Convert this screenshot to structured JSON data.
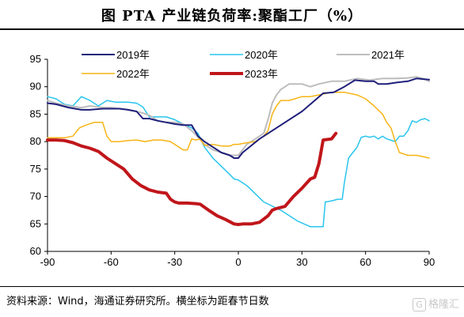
{
  "title": "图  PTA 产业链负荷率:聚酯工厂（%）",
  "source": "资料来源：Wind，海通证券研究所。横坐标为距春节日数",
  "watermark": "格隆汇",
  "chart_data": {
    "type": "line",
    "title": "PTA 产业链负荷率:聚酯工厂（%）",
    "xlabel": "",
    "ylabel": "",
    "xlim": [
      -90,
      90
    ],
    "ylim": [
      60,
      95
    ],
    "xticks": [
      -90,
      -60,
      -30,
      0,
      30,
      60,
      90
    ],
    "yticks": [
      60,
      65,
      70,
      75,
      80,
      85,
      90,
      95
    ],
    "grid": false,
    "legend_position": "top",
    "series": [
      {
        "name": "2019年",
        "color": "#1f1f7a",
        "width": 2,
        "points": [
          [
            -90,
            87
          ],
          [
            -86,
            86.8
          ],
          [
            -80,
            86.2
          ],
          [
            -74,
            85.8
          ],
          [
            -70,
            85.8
          ],
          [
            -64,
            86
          ],
          [
            -60,
            86
          ],
          [
            -56,
            86
          ],
          [
            -52,
            85.8
          ],
          [
            -48,
            85.5
          ],
          [
            -45,
            84.2
          ],
          [
            -42,
            84.2
          ],
          [
            -38,
            83.8
          ],
          [
            -34,
            83.5
          ],
          [
            -30,
            83.2
          ],
          [
            -26,
            83
          ],
          [
            -22,
            83
          ],
          [
            -19,
            81
          ],
          [
            -16,
            80
          ],
          [
            -12,
            79
          ],
          [
            -8,
            78
          ],
          [
            -4,
            77.5
          ],
          [
            -2,
            77
          ],
          [
            0,
            77
          ],
          [
            2,
            78
          ],
          [
            10,
            80.5
          ],
          [
            20,
            83
          ],
          [
            30,
            85.5
          ],
          [
            40,
            88.8
          ],
          [
            45,
            89
          ],
          [
            50,
            90
          ],
          [
            55,
            91.2
          ],
          [
            60,
            91
          ],
          [
            64,
            91
          ],
          [
            66,
            90.5
          ],
          [
            70,
            90.5
          ],
          [
            75,
            90.8
          ],
          [
            80,
            91
          ],
          [
            84,
            91.5
          ],
          [
            90,
            91.3
          ]
        ]
      },
      {
        "name": "2020年",
        "color": "#29c5ee",
        "width": 1.5,
        "points": [
          [
            -90,
            88.2
          ],
          [
            -86,
            87.8
          ],
          [
            -82,
            86.8
          ],
          [
            -78,
            86.5
          ],
          [
            -74,
            88.2
          ],
          [
            -70,
            87.5
          ],
          [
            -66,
            86.5
          ],
          [
            -62,
            87.5
          ],
          [
            -58,
            87.2
          ],
          [
            -52,
            87.2
          ],
          [
            -48,
            87
          ],
          [
            -45,
            86.3
          ],
          [
            -42,
            84.5
          ],
          [
            -38,
            84.5
          ],
          [
            -34,
            84.5
          ],
          [
            -30,
            84
          ],
          [
            -26,
            83.2
          ],
          [
            -22,
            82.5
          ],
          [
            -19,
            81.5
          ],
          [
            -16,
            79
          ],
          [
            -12,
            77
          ],
          [
            -8,
            75.5
          ],
          [
            -4,
            74
          ],
          [
            -2,
            73.2
          ],
          [
            0,
            73
          ],
          [
            4,
            72
          ],
          [
            8,
            70.5
          ],
          [
            12,
            69
          ],
          [
            20,
            67.5
          ],
          [
            28,
            65.5
          ],
          [
            34,
            64.5
          ],
          [
            40,
            64.5
          ],
          [
            41,
            69
          ],
          [
            44,
            69.2
          ],
          [
            47,
            69.5
          ],
          [
            49,
            69.5
          ],
          [
            50,
            72.5
          ],
          [
            52,
            77
          ],
          [
            54,
            78
          ],
          [
            56,
            79
          ],
          [
            58,
            80.8
          ],
          [
            60,
            81
          ],
          [
            62,
            80.8
          ],
          [
            64,
            81
          ],
          [
            66,
            80.5
          ],
          [
            68,
            81
          ],
          [
            70,
            80.5
          ],
          [
            74,
            80
          ],
          [
            76,
            81
          ],
          [
            78,
            81
          ],
          [
            80,
            82
          ],
          [
            82,
            83.8
          ],
          [
            84,
            83.5
          ],
          [
            86,
            84
          ],
          [
            88,
            84.2
          ],
          [
            90,
            83.8
          ]
        ]
      },
      {
        "name": "2021年",
        "color": "#bdbdbd",
        "width": 2,
        "points": [
          [
            -90,
            87.5
          ],
          [
            -86,
            87
          ],
          [
            -80,
            86.5
          ],
          [
            -74,
            86.2
          ],
          [
            -70,
            86.5
          ],
          [
            -64,
            86.2
          ],
          [
            -60,
            86.2
          ],
          [
            -56,
            86
          ],
          [
            -52,
            85.8
          ],
          [
            -48,
            85.5
          ],
          [
            -45,
            85.2
          ],
          [
            -42,
            84.8
          ],
          [
            -38,
            83.8
          ],
          [
            -34,
            83.5
          ],
          [
            -30,
            83.5
          ],
          [
            -26,
            83.2
          ],
          [
            -22,
            82
          ],
          [
            -19,
            80.8
          ],
          [
            -16,
            79.5
          ],
          [
            -12,
            78.5
          ],
          [
            -8,
            78
          ],
          [
            -4,
            77.5
          ],
          [
            -2,
            77.5
          ],
          [
            0,
            77.5
          ],
          [
            4,
            79.5
          ],
          [
            8,
            80.5
          ],
          [
            12,
            81.5
          ],
          [
            14,
            84
          ],
          [
            16,
            87
          ],
          [
            18,
            88.5
          ],
          [
            20,
            89.5
          ],
          [
            24,
            90.5
          ],
          [
            30,
            90.5
          ],
          [
            34,
            90
          ],
          [
            38,
            90.5
          ],
          [
            44,
            91
          ],
          [
            50,
            91
          ],
          [
            56,
            91.5
          ],
          [
            62,
            91.2
          ],
          [
            68,
            91.5
          ],
          [
            74,
            91.5
          ],
          [
            80,
            91.6
          ],
          [
            84,
            91.8
          ],
          [
            87,
            91.5
          ],
          [
            90,
            91
          ]
        ]
      },
      {
        "name": "2022年",
        "color": "#f6b414",
        "width": 1.5,
        "points": [
          [
            -90,
            80.7
          ],
          [
            -86,
            80.7
          ],
          [
            -82,
            80.7
          ],
          [
            -78,
            81
          ],
          [
            -75,
            82.5
          ],
          [
            -72,
            83
          ],
          [
            -68,
            83.5
          ],
          [
            -64,
            83.5
          ],
          [
            -62,
            81
          ],
          [
            -60,
            80
          ],
          [
            -56,
            80
          ],
          [
            -52,
            80.2
          ],
          [
            -48,
            80.3
          ],
          [
            -44,
            80
          ],
          [
            -40,
            80.3
          ],
          [
            -36,
            80.3
          ],
          [
            -32,
            80
          ],
          [
            -28,
            79
          ],
          [
            -26,
            78.5
          ],
          [
            -24,
            78.5
          ],
          [
            -22,
            80.5
          ],
          [
            -20,
            80.3
          ],
          [
            -18,
            80.5
          ],
          [
            -16,
            79.3
          ],
          [
            -12,
            79.5
          ],
          [
            -8,
            79.2
          ],
          [
            -4,
            79.2
          ],
          [
            -2,
            79.5
          ],
          [
            0,
            79.5
          ],
          [
            4,
            79.8
          ],
          [
            8,
            80
          ],
          [
            12,
            81
          ],
          [
            14,
            82
          ],
          [
            16,
            85
          ],
          [
            18,
            86.5
          ],
          [
            20,
            87.5
          ],
          [
            24,
            87.5
          ],
          [
            30,
            88.2
          ],
          [
            34,
            88.2
          ],
          [
            38,
            88.5
          ],
          [
            44,
            89
          ],
          [
            50,
            89
          ],
          [
            56,
            88.5
          ],
          [
            60,
            87.8
          ],
          [
            64,
            86.5
          ],
          [
            68,
            85
          ],
          [
            70,
            83.5
          ],
          [
            72,
            82.5
          ],
          [
            74,
            80
          ],
          [
            76,
            78
          ],
          [
            80,
            77.5
          ],
          [
            84,
            77.5
          ],
          [
            88,
            77.2
          ],
          [
            90,
            77
          ]
        ]
      },
      {
        "name": "2023年",
        "color": "#c0161b",
        "width": 4,
        "points": [
          [
            -90,
            80.3
          ],
          [
            -86,
            80.3
          ],
          [
            -82,
            80.2
          ],
          [
            -78,
            79.8
          ],
          [
            -74,
            79.2
          ],
          [
            -70,
            78.8
          ],
          [
            -66,
            78.2
          ],
          [
            -62,
            77
          ],
          [
            -58,
            76
          ],
          [
            -54,
            75
          ],
          [
            -50,
            73.2
          ],
          [
            -46,
            72
          ],
          [
            -42,
            71.2
          ],
          [
            -38,
            70.8
          ],
          [
            -34,
            70.6
          ],
          [
            -32,
            69.5
          ],
          [
            -30,
            69
          ],
          [
            -28,
            68.8
          ],
          [
            -24,
            68.8
          ],
          [
            -20,
            68.7
          ],
          [
            -18,
            68.6
          ],
          [
            -14,
            67.5
          ],
          [
            -10,
            66.5
          ],
          [
            -6,
            65.8
          ],
          [
            -2,
            65
          ],
          [
            0,
            64.9
          ],
          [
            2,
            65
          ],
          [
            6,
            65
          ],
          [
            10,
            65.3
          ],
          [
            14,
            66.5
          ],
          [
            16,
            67.5
          ],
          [
            18,
            67.8
          ],
          [
            22,
            68.2
          ],
          [
            26,
            70
          ],
          [
            30,
            71.5
          ],
          [
            34,
            73.2
          ],
          [
            36,
            73.5
          ],
          [
            38,
            76
          ],
          [
            40,
            80.3
          ],
          [
            44,
            80.5
          ],
          [
            46,
            81.5
          ]
        ]
      }
    ]
  }
}
